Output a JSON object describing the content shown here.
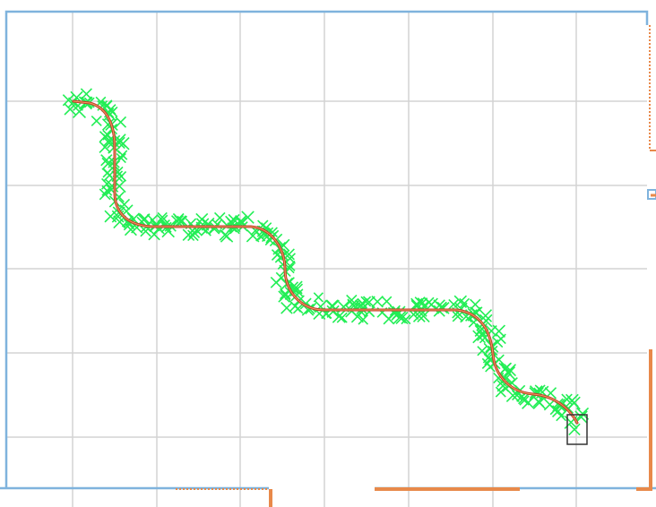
{
  "view": {
    "colors": {
      "background": "#ffffff",
      "grid": "#d4d4d4",
      "boundary": "#7fb3dd",
      "obstacle": "#e8894a",
      "samples": "#22ee55",
      "path_outer": "#c0392b",
      "path_inner": "#f0a060",
      "robot": "#333333"
    }
  }
}
